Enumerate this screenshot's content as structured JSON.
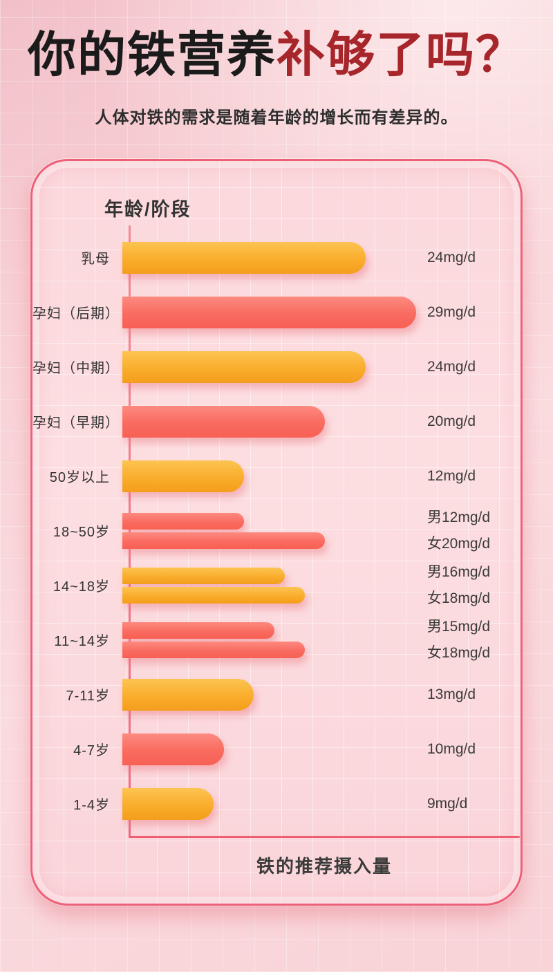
{
  "header": {
    "title_black": "你的铁营养",
    "title_red": "补够了吗？",
    "subtitle": "人体对铁的需求是随着年龄的增长而有差异的。"
  },
  "chart_data": {
    "type": "bar",
    "orientation": "horizontal",
    "y_header": "年龄/阶段",
    "xlabel": "铁的推荐摄入量",
    "unit": "mg/d",
    "xlim": [
      0,
      29
    ],
    "grid": true,
    "legend": "none",
    "colors": {
      "orange": "#f8a827",
      "red": "#f9685f",
      "axis": "#ee5f74",
      "title_red": "#a7262b"
    },
    "rows": [
      {
        "label": "乳母",
        "bars": [
          {
            "value": 24,
            "color": "orange"
          }
        ],
        "values": [
          "24mg/d"
        ]
      },
      {
        "label": "孕妇（后期）",
        "bars": [
          {
            "value": 29,
            "color": "red"
          }
        ],
        "values": [
          "29mg/d"
        ]
      },
      {
        "label": "孕妇（中期）",
        "bars": [
          {
            "value": 24,
            "color": "orange"
          }
        ],
        "values": [
          "24mg/d"
        ]
      },
      {
        "label": "孕妇（早期）",
        "bars": [
          {
            "value": 20,
            "color": "red"
          }
        ],
        "values": [
          "20mg/d"
        ]
      },
      {
        "label": "50岁以上",
        "bars": [
          {
            "value": 12,
            "color": "orange"
          }
        ],
        "values": [
          "12mg/d"
        ]
      },
      {
        "label": "18~50岁",
        "bars": [
          {
            "value": 12,
            "color": "red"
          },
          {
            "value": 20,
            "color": "red"
          }
        ],
        "values": [
          "男12mg/d",
          "女20mg/d"
        ]
      },
      {
        "label": "14~18岁",
        "bars": [
          {
            "value": 16,
            "color": "orange"
          },
          {
            "value": 18,
            "color": "orange"
          }
        ],
        "values": [
          "男16mg/d",
          "女18mg/d"
        ]
      },
      {
        "label": "11~14岁",
        "bars": [
          {
            "value": 15,
            "color": "red"
          },
          {
            "value": 18,
            "color": "red"
          }
        ],
        "values": [
          "男15mg/d",
          "女18mg/d"
        ]
      },
      {
        "label": "7-11岁",
        "bars": [
          {
            "value": 13,
            "color": "orange"
          }
        ],
        "values": [
          "13mg/d"
        ]
      },
      {
        "label": "4-7岁",
        "bars": [
          {
            "value": 10,
            "color": "red"
          }
        ],
        "values": [
          "10mg/d"
        ]
      },
      {
        "label": "1-4岁",
        "bars": [
          {
            "value": 9,
            "color": "orange"
          }
        ],
        "values": [
          "9mg/d"
        ]
      }
    ]
  }
}
